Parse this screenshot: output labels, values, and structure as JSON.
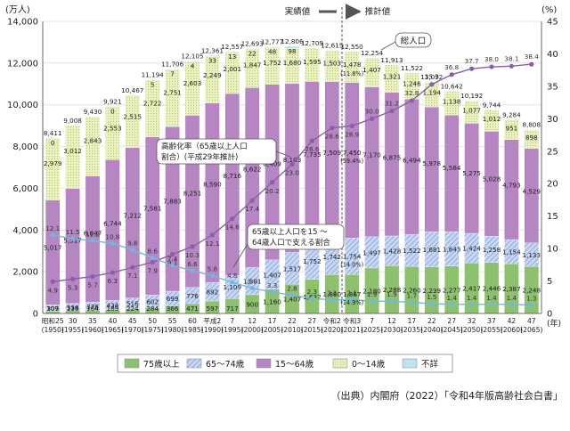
{
  "chart_data": {
    "type": "bar",
    "title": "",
    "y_left_unit": "(万人)",
    "y_right_unit": "(%)",
    "ylim_left": [
      0,
      14000
    ],
    "ylim_right": [
      0,
      45
    ],
    "y_left_ticks": [
      "0",
      "2,000",
      "4,000",
      "6,000",
      "8,000",
      "10,000",
      "12,000",
      "14,000"
    ],
    "y_right_ticks": [
      "0",
      "5",
      "10",
      "15",
      "20",
      "25",
      "30",
      "35",
      "40",
      "45"
    ],
    "x_unit_label": "(年)",
    "actual_label": "実績値",
    "projected_label": "推計値",
    "categories": [
      {
        "era": "昭和25",
        "year": "(1950)"
      },
      {
        "era": "30",
        "year": "(1955)"
      },
      {
        "era": "35",
        "year": "(1960)"
      },
      {
        "era": "40",
        "year": "(1965)"
      },
      {
        "era": "45",
        "year": "(1970)"
      },
      {
        "era": "50",
        "year": "(1975)"
      },
      {
        "era": "55",
        "year": "(1980)"
      },
      {
        "era": "60",
        "year": "(1985)"
      },
      {
        "era": "平成2",
        "year": "(1990)"
      },
      {
        "era": "7",
        "year": "(1995)"
      },
      {
        "era": "12",
        "year": "(2000)"
      },
      {
        "era": "17",
        "year": "(2005)"
      },
      {
        "era": "22",
        "year": "(2010)"
      },
      {
        "era": "27",
        "year": "(2015)"
      },
      {
        "era": "令和2",
        "year": "(2020)"
      },
      {
        "era": "令和3",
        "year": "(2021)"
      },
      {
        "era": "7",
        "year": "(2025)"
      },
      {
        "era": "12",
        "year": "(2030)"
      },
      {
        "era": "17",
        "year": "(2035)"
      },
      {
        "era": "22",
        "year": "(2040)"
      },
      {
        "era": "27",
        "year": "(2045)"
      },
      {
        "era": "32",
        "year": "(2050)"
      },
      {
        "era": "37",
        "year": "(2055)"
      },
      {
        "era": "42",
        "year": "(2060)"
      },
      {
        "era": "47",
        "year": "(2065)"
      }
    ],
    "series": [
      {
        "name": "75歳以上",
        "color": "#8dc16e",
        "values": [
          107,
          139,
          164,
          189,
          224,
          284,
          366,
          471,
          597,
          717,
          900,
          1160,
          1407,
          1632,
          1860,
          1867,
          2180,
          2288,
          2260,
          2239,
          2277,
          2417,
          2446,
          2387,
          2248
        ],
        "labels": [
          "107",
          "139",
          "164",
          "189",
          "224",
          "284",
          "366",
          "471",
          "597",
          "717",
          "900",
          "1,160",
          "1,407",
          "1,632",
          "1,860",
          "1,867",
          "2,180",
          "2,288",
          "2,260",
          "2,239",
          "2,277",
          "2,417",
          "2,446",
          "2,387",
          "2,248"
        ]
      },
      {
        "name": "65～74歳",
        "color": "#b0c6ea",
        "values": [
          309,
          338,
          376,
          434,
          516,
          602,
          699,
          776,
          892,
          1109,
          1301,
          1407,
          1517,
          1752,
          1742,
          1754,
          1497,
          1428,
          1522,
          1681,
          1643,
          1424,
          1258,
          1154,
          1133
        ],
        "labels": [
          "309",
          "338",
          "376",
          "434",
          "516",
          "602",
          "699",
          "776",
          "892",
          "1,109",
          "1,301",
          "1,407",
          "1,517",
          "1,752",
          "1,742",
          "1,754",
          "1,497",
          "1,428",
          "1,522",
          "1,681",
          "1,643",
          "1,424",
          "1,258",
          "1,154",
          "1,133"
        ]
      },
      {
        "name": "15～64歳",
        "color": "#b586c2",
        "values": [
          5017,
          5517,
          6047,
          6744,
          7212,
          7581,
          7883,
          8251,
          8590,
          8716,
          8622,
          8409,
          8103,
          7735,
          7509,
          7450,
          7170,
          6875,
          6494,
          5978,
          5584,
          5275,
          5028,
          4793,
          4529
        ],
        "labels": [
          "5,017",
          "5,517",
          "6,047",
          "6,744",
          "7,212",
          "7,581",
          "7,883",
          "8,251",
          "8,590",
          "8,716",
          "8,622",
          "8,409",
          "8,103",
          "7,735",
          "7,509",
          "7,450",
          "7,170",
          "6,875",
          "6,494",
          "5,978",
          "5,584",
          "5,275",
          "5,028",
          "4,793",
          "4,529"
        ]
      },
      {
        "name": "0～14歳",
        "color": "#e6efb4",
        "values": [
          2979,
          3012,
          2843,
          2553,
          2515,
          2722,
          2751,
          2603,
          2249,
          2001,
          1847,
          1752,
          1680,
          1595,
          1503,
          1478,
          1407,
          1321,
          1246,
          1194,
          1138,
          1077,
          1012,
          951,
          898
        ],
        "labels": [
          "2,979",
          "3,012",
          "2,843",
          "2,553",
          "2,515",
          "2,722",
          "2,751",
          "2,603",
          "2,249",
          "2,001",
          "1,847",
          "1,752",
          "1,680",
          "1,595",
          "1,503",
          "1,478",
          "1,407",
          "1,321",
          "1,246",
          "1,194",
          "1,138",
          "1,077",
          "1,012",
          "951",
          "898"
        ]
      },
      {
        "name": "不詳",
        "color": "#bfe3f3",
        "values": [
          0,
          0,
          0,
          0,
          0,
          5,
          7,
          4,
          33,
          13,
          22,
          48,
          98,
          0,
          0,
          0,
          0,
          0,
          0,
          0,
          0,
          0,
          0,
          0,
          0
        ],
        "labels": [
          "0",
          "",
          "",
          "0",
          "",
          "5",
          "7",
          "4",
          "33",
          "13",
          "22",
          "48",
          "98",
          "",
          "",
          "",
          "",
          "",
          "",
          "",
          "",
          "",
          "",
          "",
          ""
        ]
      }
    ],
    "totals": [
      8411,
      9008,
      9430,
      9921,
      10467,
      11194,
      11706,
      12105,
      12361,
      12557,
      12693,
      12777,
      12806,
      12709,
      12615,
      12550,
      12254,
      11913,
      11522,
      11092,
      10642,
      10192,
      9744,
      9284,
      8808
    ],
    "total_labels": [
      "8,411",
      "9,008",
      "9,430",
      "9,921",
      "10,467",
      "11,194",
      "11,706",
      "12,105",
      "12,361",
      "12,557",
      "12,693",
      "12,777",
      "12,806",
      "12,709",
      "12,615",
      "12,550",
      "12,254",
      "11,913",
      "11,522",
      "11,092",
      "10,642",
      "10,192",
      "9,744",
      "9,284",
      "8,808"
    ],
    "line_aging_rate": {
      "name": "高齢化率",
      "values": [
        4.9,
        5.3,
        5.7,
        6.3,
        7.1,
        7.9,
        9.1,
        10.3,
        12.1,
        14.6,
        17.4,
        20.2,
        23.0,
        26.6,
        28.6,
        28.9,
        30.0,
        31.2,
        32.8,
        35.3,
        36.8,
        37.7,
        38.0,
        38.1,
        38.4
      ],
      "labels": [
        "4.9",
        "5.3",
        "5.7",
        "6.3",
        "7.1",
        "7.9",
        "9.1",
        "10.3",
        "12.1",
        "14.6",
        "17.4",
        "20.2",
        "23.0",
        "26.6",
        "28.6",
        "28.9",
        "30.0",
        "31.2",
        "32.8",
        "35.3",
        "36.8",
        "37.7",
        "38.0",
        "38.1",
        "38.4"
      ]
    },
    "line_support_ratio": {
      "name": "65歳以上人口を15～64歳人口で支える割合",
      "values": [
        12.1,
        11.5,
        11.2,
        10.8,
        9.8,
        8.6,
        7.4,
        6.6,
        5.8,
        4.8,
        3.9,
        3.3,
        2.8,
        2.3,
        2.1,
        2.1,
        1.9,
        1.9,
        1.7,
        1.5,
        1.4,
        1.4,
        1.4,
        1.4,
        1.3
      ],
      "labels": [
        "12.1",
        "11.5",
        "11.2",
        "10.8",
        "9.8",
        "8.6",
        "7.4",
        "6.6",
        "5.8",
        "4.8",
        "3.9",
        "3.3",
        "2.8",
        "2.3",
        "2.1",
        "2.1",
        "1.9",
        "1.9",
        "1.7",
        "1.5",
        "1.4",
        "1.4",
        "1.4",
        "1.4",
        "1.3"
      ]
    },
    "annotations": {
      "total_pop": "総人口",
      "aging_rate_line1": "高齢化率（65歳以上人口",
      "aging_rate_line2": "割合）(平成29年推計)",
      "support_line1": "65歳以上人口を15 ～",
      "support_line2": "64歳人口で支える割合",
      "r3_pct_65_74": "(14.0%)",
      "r3_pct_75": "(14.9%)",
      "r3_pct_0_14": "(11.8%)",
      "r3_pct_15_64": "(59.4%)"
    },
    "legend": {
      "position": "bottom",
      "items": [
        "75歳以上",
        "65～74歳",
        "15～64歳",
        "0～14歳",
        "不詳"
      ]
    }
  },
  "source_text": "（出典）内閣府（2022）「令和4年版高齢社会白書」"
}
